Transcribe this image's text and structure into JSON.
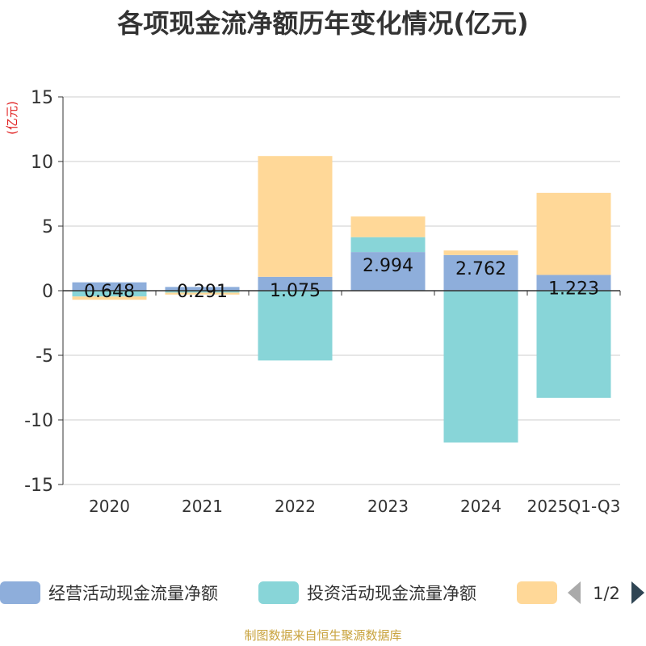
{
  "chart_data": {
    "type": "bar",
    "stacked": true,
    "title": "各项现金流净额历年变化情况(亿元)",
    "ylabel": "(亿元)",
    "ylim": [
      -15,
      15
    ],
    "yticks": [
      15,
      10,
      5,
      0,
      -5,
      -10,
      -15
    ],
    "categories": [
      "2020",
      "2021",
      "2022",
      "2023",
      "2024",
      "2025Q1-Q3"
    ],
    "series": [
      {
        "name": "经营活动现金流量净额",
        "color": "#8eaedb",
        "values": [
          0.648,
          0.291,
          1.075,
          2.994,
          2.762,
          1.223
        ],
        "labels": [
          "0.648",
          "0.291",
          "1.075",
          "2.994",
          "2.762",
          "1.223"
        ]
      },
      {
        "name": "投资活动现金流量净额",
        "color": "#88d5d8",
        "values": [
          -0.45,
          -0.15,
          -5.4,
          1.15,
          -11.75,
          -8.3
        ]
      },
      {
        "name": "",
        "color": "#ffd898",
        "values": [
          -0.25,
          -0.15,
          9.35,
          1.6,
          0.35,
          6.35
        ]
      }
    ],
    "legend": {
      "page": "1/2"
    }
  },
  "source_note": "制图数据来自恒生聚源数据库"
}
